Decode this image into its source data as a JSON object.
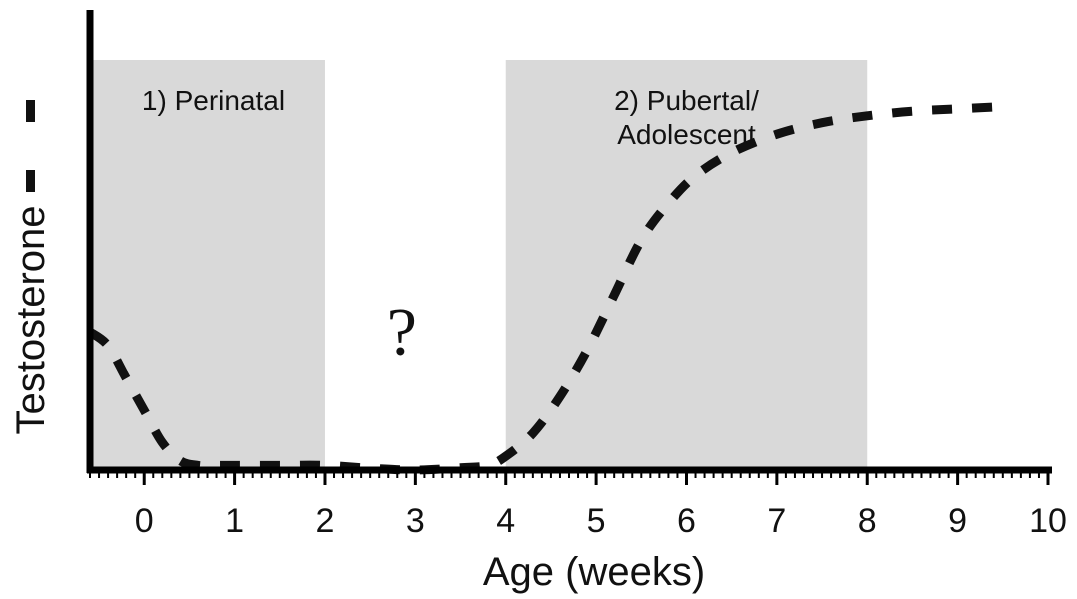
{
  "chart_data": {
    "type": "line",
    "xlabel": "Age (weeks)",
    "ylabel": "Testosterone",
    "xlim": [
      -0.6,
      10
    ],
    "ylim": [
      0,
      1
    ],
    "xticks": [
      0,
      1,
      2,
      3,
      4,
      5,
      6,
      7,
      8,
      9,
      10
    ],
    "yticks_shown": false,
    "grid": false,
    "regions": [
      {
        "label": "1) Perinatal",
        "from": -0.6,
        "to": 2
      },
      {
        "label": "2) Pubertal/\nAdolescent",
        "from": 4,
        "to": 8
      }
    ],
    "annotations": [
      {
        "text": "?",
        "x": 2.85,
        "y": 0.26
      }
    ],
    "series": [
      {
        "style": "dashed",
        "x": [
          -0.6,
          -0.4,
          -0.2,
          0,
          0.2,
          0.4,
          0.6,
          0.8,
          1,
          1.5,
          2,
          2.5,
          3,
          3.5,
          3.8,
          4,
          4.3,
          4.6,
          4.9,
          5.2,
          5.5,
          5.8,
          6.1,
          6.5,
          7,
          7.5,
          8,
          8.5,
          9,
          9.5
        ],
        "y": [
          0.3,
          0.27,
          0.2,
          0.13,
          0.06,
          0.02,
          0.01,
          0.01,
          0.01,
          0.01,
          0.01,
          0.004,
          0.0,
          0.005,
          0.01,
          0.03,
          0.08,
          0.16,
          0.26,
          0.38,
          0.5,
          0.58,
          0.64,
          0.69,
          0.73,
          0.755,
          0.77,
          0.78,
          0.785,
          0.79
        ]
      }
    ]
  }
}
